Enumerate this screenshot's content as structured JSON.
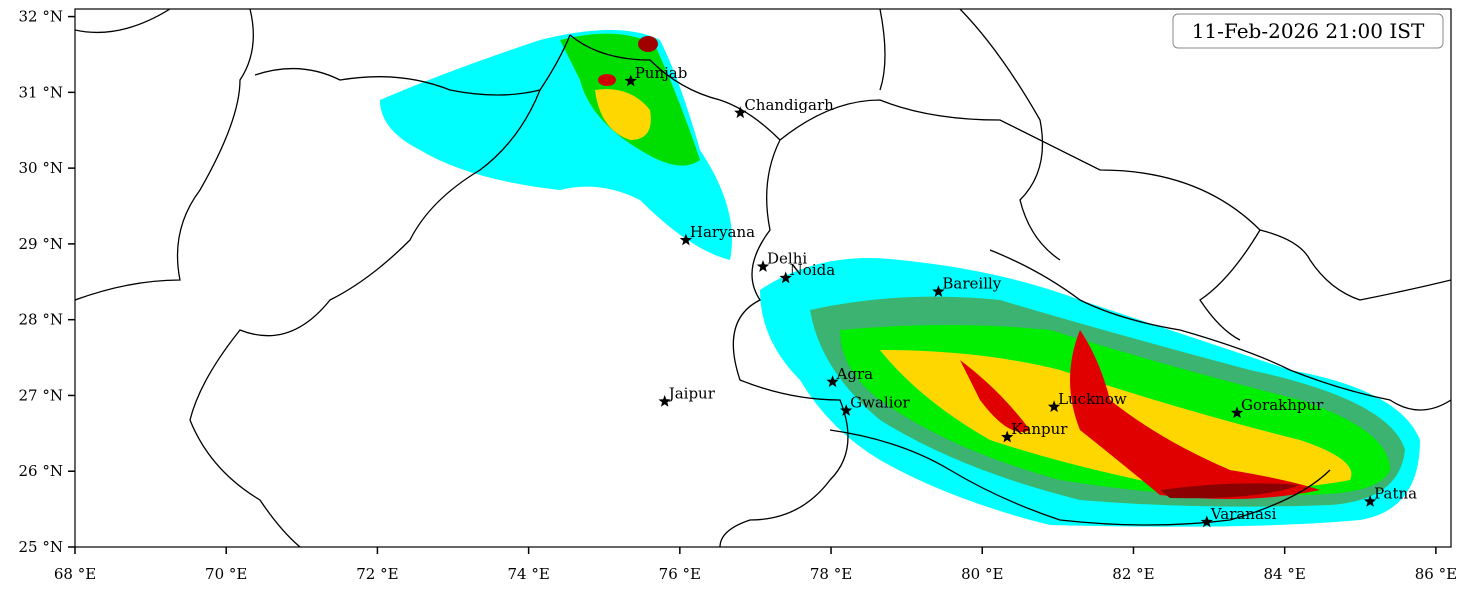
{
  "map": {
    "title": "11-Feb-2026 21:00 IST",
    "xlim": [
      68,
      86.2
    ],
    "ylim": [
      25,
      32.1
    ],
    "xticks": [
      {
        "value": 68,
        "label": "68 °E"
      },
      {
        "value": 70,
        "label": "70 °E"
      },
      {
        "value": 72,
        "label": "72 °E"
      },
      {
        "value": 74,
        "label": "74 °E"
      },
      {
        "value": 76,
        "label": "76 °E"
      },
      {
        "value": 78,
        "label": "78 °E"
      },
      {
        "value": 80,
        "label": "80 °E"
      },
      {
        "value": 82,
        "label": "82 °E"
      },
      {
        "value": 84,
        "label": "84 °E"
      },
      {
        "value": 86,
        "label": "86 °E"
      }
    ],
    "yticks": [
      {
        "value": 25,
        "label": "25 °N"
      },
      {
        "value": 26,
        "label": "26 °N"
      },
      {
        "value": 27,
        "label": "27 °N"
      },
      {
        "value": 28,
        "label": "28 °N"
      },
      {
        "value": 29,
        "label": "29 °N"
      },
      {
        "value": 30,
        "label": "30 °N"
      },
      {
        "value": 31,
        "label": "31 °N"
      },
      {
        "value": 32,
        "label": "32 °N"
      }
    ],
    "cities": [
      {
        "name": "Punjab",
        "lon": 75.35,
        "lat": 31.15
      },
      {
        "name": "Chandigarh",
        "lon": 76.8,
        "lat": 30.73
      },
      {
        "name": "Haryana",
        "lon": 76.08,
        "lat": 29.05
      },
      {
        "name": "Delhi",
        "lon": 77.1,
        "lat": 28.7
      },
      {
        "name": "Noida",
        "lon": 77.4,
        "lat": 28.55
      },
      {
        "name": "Bareilly",
        "lon": 79.42,
        "lat": 28.37
      },
      {
        "name": "Agra",
        "lon": 78.02,
        "lat": 27.18
      },
      {
        "name": "Jaipur",
        "lon": 75.8,
        "lat": 26.92
      },
      {
        "name": "Gwalior",
        "lon": 78.2,
        "lat": 26.8
      },
      {
        "name": "Lucknow",
        "lon": 80.95,
        "lat": 26.85
      },
      {
        "name": "Kanpur",
        "lon": 80.33,
        "lat": 26.45
      },
      {
        "name": "Gorakhpur",
        "lon": 83.37,
        "lat": 26.77
      },
      {
        "name": "Varanasi",
        "lon": 82.97,
        "lat": 25.33
      },
      {
        "name": "Patna",
        "lon": 85.13,
        "lat": 25.6
      }
    ]
  }
}
